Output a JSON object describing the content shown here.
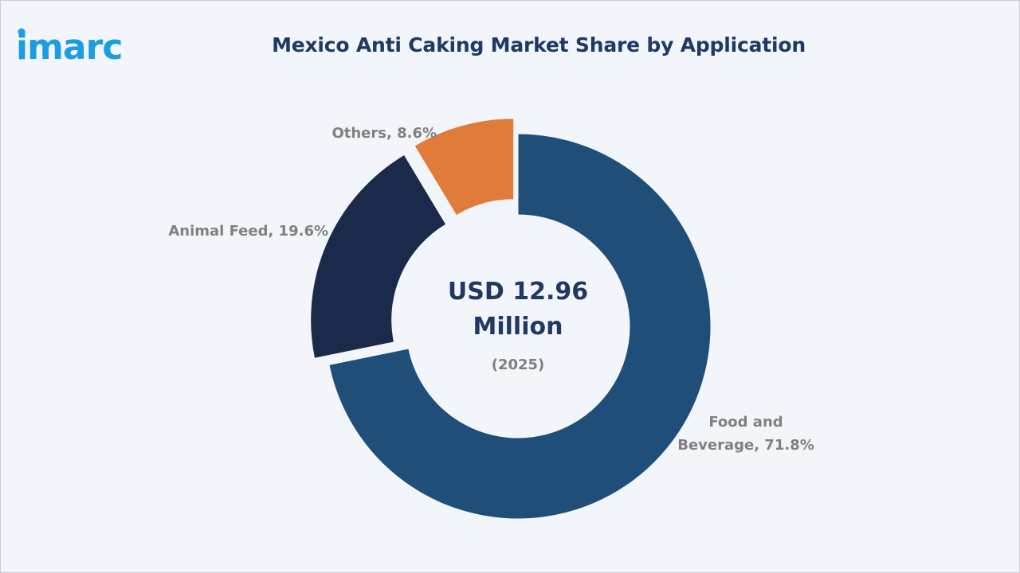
{
  "brand": {
    "logo_text": "imarc",
    "logo_color": "#1a9ee0"
  },
  "header": {
    "title": "Mexico Anti Caking Market Share by Application"
  },
  "center": {
    "value_line1": "USD 12.96",
    "value_line2": "Million",
    "year": "(2025)"
  },
  "chart_data": {
    "type": "pie",
    "donut": true,
    "title": "Mexico Anti Caking Market Share by Application",
    "unit": "%",
    "slices": [
      {
        "name": "Food and Beverage",
        "value": 71.8,
        "label_lines": [
          "Food and",
          "Beverage, 71.8%"
        ],
        "color": "#1f4e79",
        "exploded": false
      },
      {
        "name": "Animal Feed",
        "value": 19.6,
        "label_lines": [
          "Animal Feed, 19.6%"
        ],
        "color": "#1b2a4a",
        "exploded": true
      },
      {
        "name": "Others",
        "value": 8.6,
        "label_lines": [
          "Others, 8.6%"
        ],
        "color": "#e07b39",
        "exploded": true
      }
    ]
  }
}
